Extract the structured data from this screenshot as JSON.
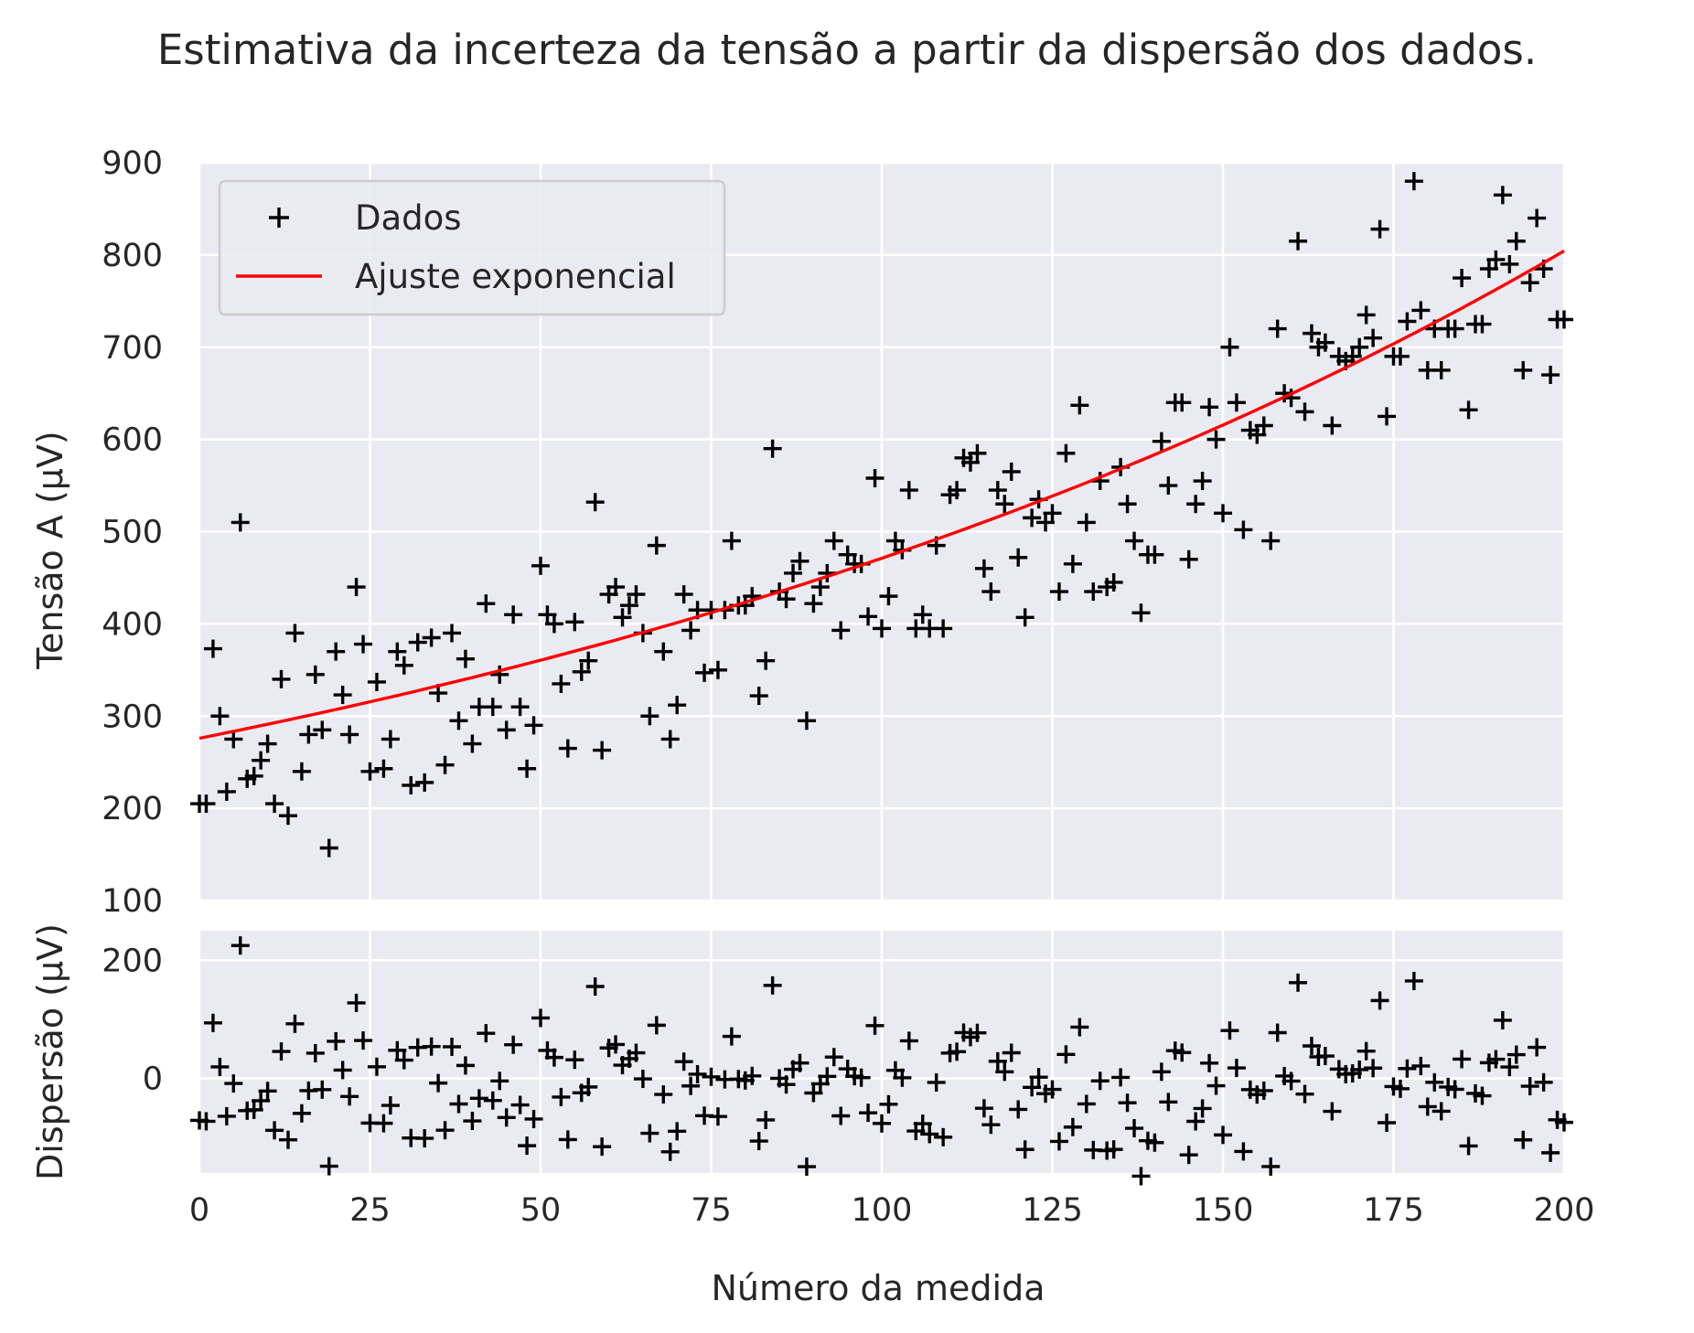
{
  "chart_data": {
    "title": "Estimativa da incerteza da tensão a partir da dispersão dos dados.",
    "xlabel": "Número da medida",
    "colors": {
      "data": "#000000",
      "fit": "#ff0000",
      "panel": "#eaeaf2",
      "grid": "#ffffff"
    },
    "x_ticks": [
      0,
      25,
      50,
      75,
      100,
      125,
      150,
      175,
      200
    ],
    "top": {
      "type": "scatter",
      "ylabel": "Tensão A (μV)",
      "ylim": [
        100,
        900
      ],
      "xlim": [
        0,
        200
      ],
      "y_ticks": [
        100,
        200,
        300,
        400,
        500,
        600,
        700,
        800,
        900
      ],
      "grid": true,
      "legend": {
        "placement": "top-left",
        "entries": [
          "Dados",
          "Ajuste exponencial"
        ]
      },
      "series": [
        {
          "name": "Dados",
          "marker": "plus-icon",
          "x": [
            0,
            1,
            2,
            3,
            4,
            5,
            6,
            7,
            8,
            9,
            10,
            11,
            12,
            13,
            14,
            15,
            16,
            17,
            18,
            19,
            20,
            21,
            22,
            23,
            24,
            25,
            26,
            27,
            28,
            29,
            30,
            31,
            32,
            33,
            34,
            35,
            36,
            37,
            38,
            39,
            40,
            41,
            42,
            43,
            44,
            45,
            46,
            47,
            48,
            49,
            50,
            51,
            52,
            53,
            54,
            55,
            56,
            57,
            58,
            59,
            60,
            61,
            62,
            63,
            64,
            65,
            66,
            67,
            68,
            69,
            70,
            71,
            72,
            73,
            74,
            75,
            76,
            77,
            78,
            79,
            80,
            81,
            82,
            83,
            84,
            85,
            86,
            87,
            88,
            89,
            90,
            91,
            92,
            93,
            94,
            95,
            96,
            97,
            98,
            99,
            100,
            101,
            102,
            103,
            104,
            105,
            106,
            107,
            108,
            109,
            110,
            111,
            112,
            113,
            114,
            115,
            116,
            117,
            118,
            119,
            120,
            121,
            122,
            123,
            124,
            125,
            126,
            127,
            128,
            129,
            130,
            131,
            132,
            133,
            134,
            135,
            136,
            137,
            138,
            139,
            140,
            141,
            142,
            143,
            144,
            145,
            146,
            147,
            148,
            149,
            150,
            151,
            152,
            153,
            154,
            155,
            156,
            157,
            158,
            159,
            160,
            161,
            162,
            163,
            164,
            165,
            166,
            167,
            168,
            169,
            170,
            171,
            172,
            173,
            174,
            175,
            176,
            177,
            178,
            179,
            180,
            181,
            182,
            183,
            184,
            185,
            186,
            187,
            188,
            189,
            190,
            191,
            192,
            193,
            194,
            195,
            196,
            197,
            198,
            199,
            200
          ],
          "y": [
            205,
            205,
            373,
            300,
            218,
            275,
            510,
            232,
            235,
            252,
            270,
            205,
            340,
            192,
            390,
            240,
            280,
            345,
            285,
            157,
            370,
            323,
            280,
            440,
            378,
            240,
            337,
            243,
            275,
            370,
            355,
            225,
            380,
            228,
            385,
            325,
            247,
            390,
            295,
            362,
            270,
            310,
            422,
            310,
            345,
            285,
            410,
            310,
            243,
            290,
            463,
            410,
            400,
            335,
            265,
            402,
            348,
            360,
            532,
            263,
            432,
            440,
            407,
            420,
            432,
            390,
            300,
            485,
            370,
            275,
            312,
            432,
            393,
            415,
            347,
            415,
            350,
            415,
            490,
            420,
            420,
            430,
            322,
            360,
            590,
            435,
            427,
            455,
            468,
            295,
            422,
            440,
            455,
            490,
            393,
            475,
            465,
            465,
            408,
            558,
            395,
            430,
            490,
            480,
            545,
            395,
            410,
            395,
            485,
            395,
            540,
            545,
            580,
            575,
            585,
            460,
            435,
            545,
            530,
            565,
            472,
            407,
            515,
            535,
            510,
            520,
            435,
            585,
            465,
            637,
            510,
            435,
            555,
            440,
            445,
            570,
            530,
            490,
            412,
            475,
            475,
            598,
            550,
            640,
            640,
            470,
            530,
            555,
            635,
            600,
            520,
            700,
            640,
            502,
            610,
            605,
            615,
            490,
            720,
            650,
            645,
            815,
            630,
            715,
            700,
            705,
            615,
            690,
            685,
            690,
            700,
            735,
            710,
            828,
            625,
            690,
            690,
            728,
            880,
            740,
            675,
            720,
            675,
            720,
            720,
            775,
            632,
            725,
            725,
            785,
            795,
            865,
            790,
            815,
            675,
            770,
            840,
            785,
            670,
            730,
            730
          ]
        },
        {
          "name": "Ajuste exponencial",
          "function": "exponential fit: y = A·exp(b·x)",
          "A": 276,
          "b": 0.005348
        }
      ]
    },
    "bottom": {
      "type": "scatter",
      "ylabel": "Dispersão (μV)",
      "ylim": [
        -160,
        250
      ],
      "xlim": [
        0,
        200
      ],
      "y_ticks": [
        0,
        200
      ],
      "grid": true
    }
  }
}
